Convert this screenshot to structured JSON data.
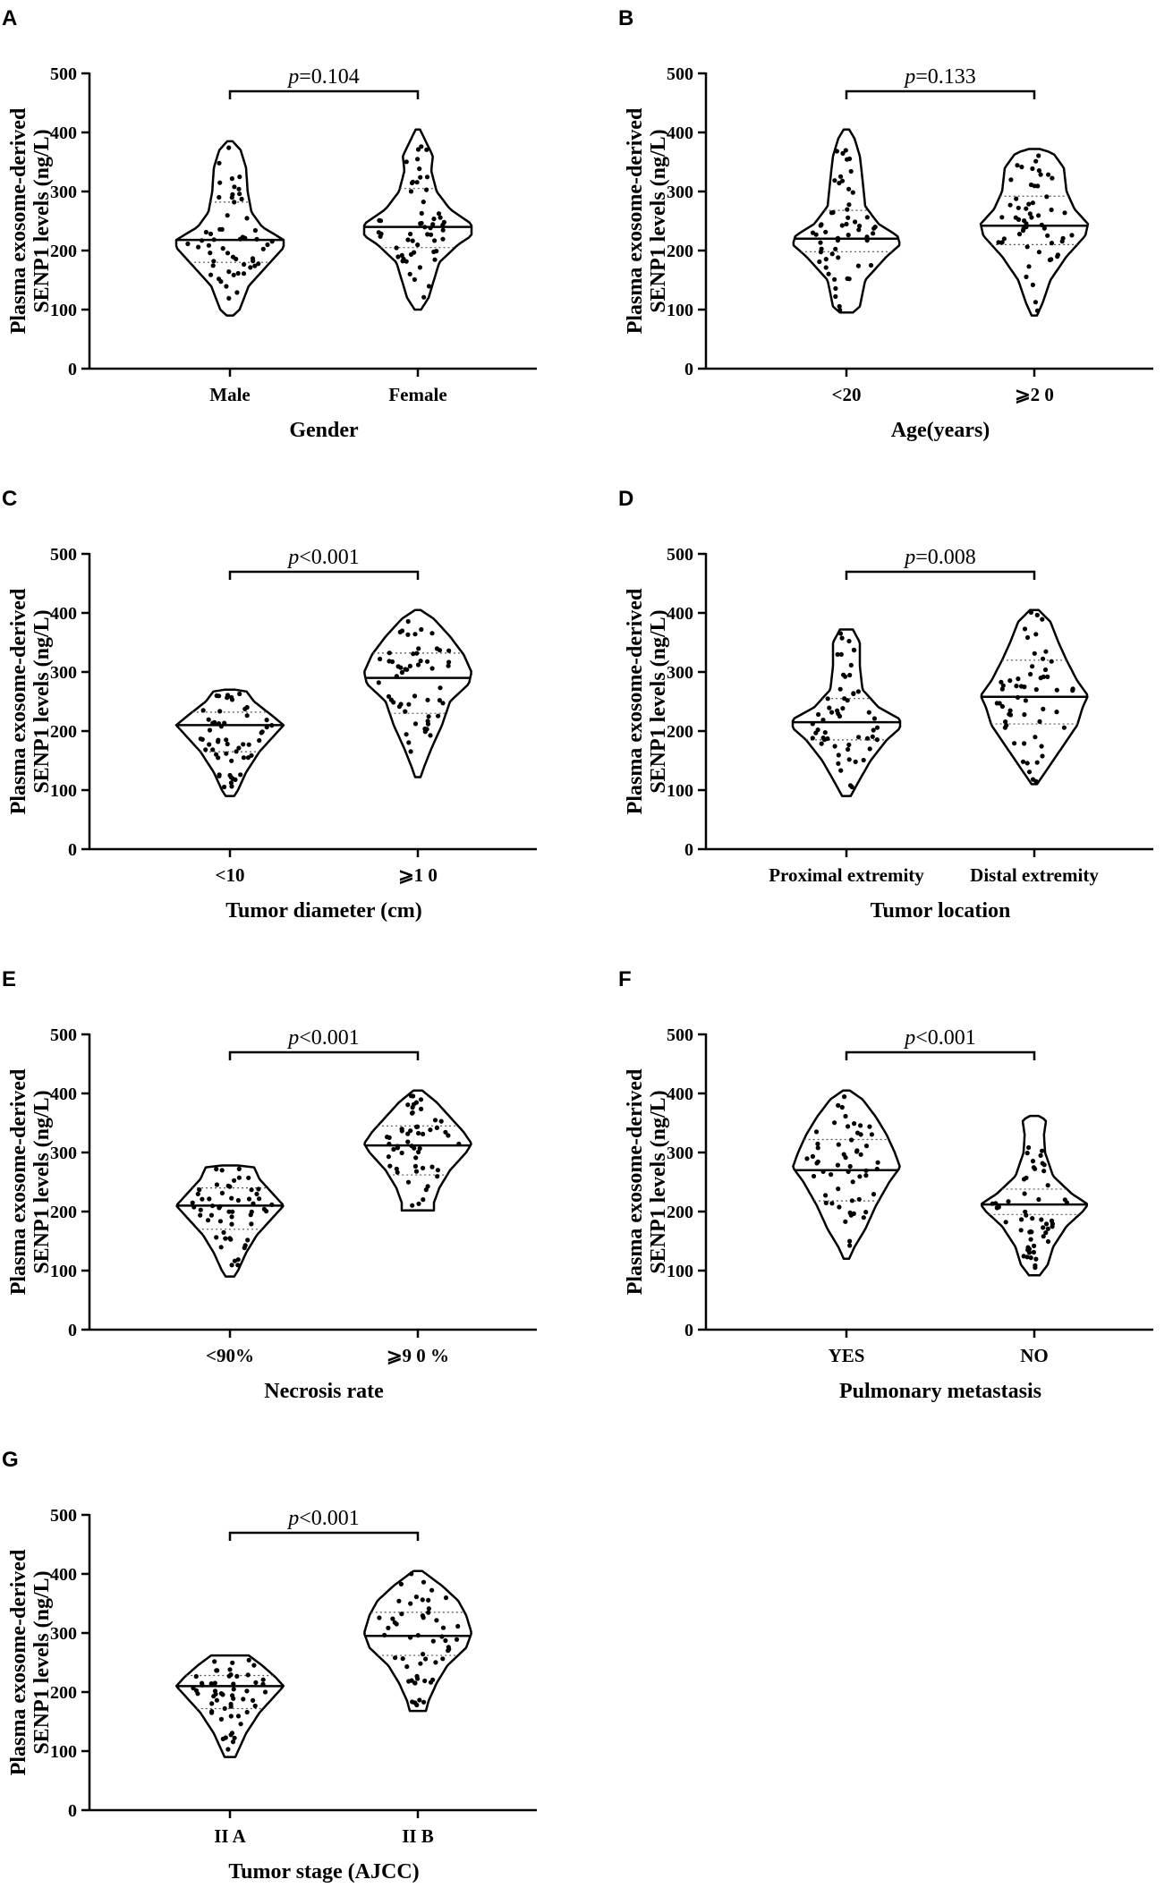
{
  "chart_data": [
    {
      "type": "violin",
      "panel_label": "A",
      "ylabel_line1": "Plasma exosome-derived",
      "ylabel_line2": "SENP1 levels (ng/L)",
      "xlabel": "Gender",
      "ylim": [
        0,
        500
      ],
      "yticks": [
        0,
        100,
        200,
        300,
        400,
        500
      ],
      "p_prefix": "p",
      "p_value": "=0.104",
      "groups": [
        {
          "name": "Male",
          "min": 90,
          "max": 385,
          "median": 218,
          "q1": 180,
          "q3": 282,
          "widths": [
            [
              90,
              0.06
            ],
            [
              100,
              0.18
            ],
            [
              140,
              0.35
            ],
            [
              180,
              0.75
            ],
            [
              205,
              1.0
            ],
            [
              218,
              1.0
            ],
            [
              240,
              0.6
            ],
            [
              265,
              0.4
            ],
            [
              300,
              0.33
            ],
            [
              340,
              0.3
            ],
            [
              370,
              0.2
            ],
            [
              385,
              0.05
            ]
          ]
        },
        {
          "name": "Female",
          "min": 100,
          "max": 405,
          "median": 240,
          "q1": 205,
          "q3": 305,
          "widths": [
            [
              100,
              0.06
            ],
            [
              120,
              0.2
            ],
            [
              150,
              0.3
            ],
            [
              180,
              0.4
            ],
            [
              210,
              0.75
            ],
            [
              225,
              1.0
            ],
            [
              245,
              1.0
            ],
            [
              270,
              0.6
            ],
            [
              300,
              0.35
            ],
            [
              335,
              0.25
            ],
            [
              360,
              0.28
            ],
            [
              390,
              0.12
            ],
            [
              405,
              0.04
            ]
          ]
        }
      ]
    },
    {
      "type": "violin",
      "panel_label": "B",
      "ylabel_line1": "Plasma exosome-derived",
      "ylabel_line2": "SENP1 levels (ng/L)",
      "xlabel": "Age(years)",
      "ylim": [
        0,
        500
      ],
      "yticks": [
        0,
        100,
        200,
        300,
        400,
        500
      ],
      "p_prefix": "p",
      "p_value": "=0.133",
      "groups": [
        {
          "name": "<20",
          "min": 95,
          "max": 405,
          "median": 220,
          "q1": 198,
          "q3": 268,
          "widths": [
            [
              95,
              0.12
            ],
            [
              105,
              0.25
            ],
            [
              150,
              0.35
            ],
            [
              190,
              0.75
            ],
            [
              210,
              1.0
            ],
            [
              225,
              0.95
            ],
            [
              245,
              0.6
            ],
            [
              275,
              0.35
            ],
            [
              320,
              0.3
            ],
            [
              360,
              0.25
            ],
            [
              390,
              0.15
            ],
            [
              405,
              0.05
            ]
          ]
        },
        {
          "name": "⩾2 0",
          "min": 90,
          "max": 372,
          "median": 242,
          "q1": 210,
          "q3": 292,
          "widths": [
            [
              90,
              0.05
            ],
            [
              110,
              0.15
            ],
            [
              150,
              0.3
            ],
            [
              190,
              0.6
            ],
            [
              225,
              0.95
            ],
            [
              245,
              1.0
            ],
            [
              270,
              0.75
            ],
            [
              300,
              0.6
            ],
            [
              340,
              0.55
            ],
            [
              365,
              0.35
            ],
            [
              372,
              0.1
            ]
          ]
        }
      ]
    },
    {
      "type": "violin",
      "panel_label": "C",
      "ylabel_line1": "Plasma exosome-derived",
      "ylabel_line2": "SENP1 levels (ng/L)",
      "xlabel": "Tumor diameter (cm)",
      "ylim": [
        0,
        500
      ],
      "yticks": [
        0,
        100,
        200,
        300,
        400,
        500
      ],
      "p_prefix": "p",
      "p_value": "<0.001",
      "groups": [
        {
          "name": "<10",
          "min": 90,
          "max": 270,
          "median": 210,
          "q1": 165,
          "q3": 232,
          "widths": [
            [
              90,
              0.08
            ],
            [
              100,
              0.15
            ],
            [
              130,
              0.3
            ],
            [
              165,
              0.55
            ],
            [
              195,
              0.85
            ],
            [
              210,
              1.0
            ],
            [
              225,
              0.8
            ],
            [
              250,
              0.45
            ],
            [
              268,
              0.3
            ],
            [
              270,
              0.1
            ]
          ]
        },
        {
          "name": "⩾1 0",
          "min": 122,
          "max": 405,
          "median": 290,
          "q1": 230,
          "q3": 332,
          "widths": [
            [
              122,
              0.05
            ],
            [
              140,
              0.12
            ],
            [
              170,
              0.25
            ],
            [
              210,
              0.45
            ],
            [
              250,
              0.6
            ],
            [
              280,
              0.95
            ],
            [
              300,
              1.0
            ],
            [
              330,
              0.85
            ],
            [
              360,
              0.6
            ],
            [
              390,
              0.3
            ],
            [
              405,
              0.05
            ]
          ]
        }
      ]
    },
    {
      "type": "violin",
      "panel_label": "D",
      "ylabel_line1": "Plasma exosome-derived",
      "ylabel_line2": "SENP1 levels (ng/L)",
      "xlabel": "Tumor location",
      "ylim": [
        0,
        500
      ],
      "yticks": [
        0,
        100,
        200,
        300,
        400,
        500
      ],
      "p_prefix": "p",
      "p_value": "=0.008",
      "groups": [
        {
          "name": "Proximal extremity",
          "min": 90,
          "max": 372,
          "median": 215,
          "q1": 185,
          "q3": 255,
          "widths": [
            [
              90,
              0.08
            ],
            [
              110,
              0.2
            ],
            [
              150,
              0.45
            ],
            [
              185,
              0.75
            ],
            [
              205,
              1.0
            ],
            [
              220,
              1.0
            ],
            [
              240,
              0.6
            ],
            [
              270,
              0.3
            ],
            [
              310,
              0.25
            ],
            [
              350,
              0.25
            ],
            [
              372,
              0.12
            ]
          ]
        },
        {
          "name": "Distal extremity",
          "min": 110,
          "max": 405,
          "median": 258,
          "q1": 212,
          "q3": 320,
          "widths": [
            [
              110,
              0.05
            ],
            [
              130,
              0.2
            ],
            [
              170,
              0.5
            ],
            [
              210,
              0.8
            ],
            [
              240,
              0.9
            ],
            [
              260,
              1.0
            ],
            [
              285,
              0.8
            ],
            [
              320,
              0.6
            ],
            [
              350,
              0.45
            ],
            [
              385,
              0.3
            ],
            [
              405,
              0.08
            ]
          ]
        }
      ]
    },
    {
      "type": "violin",
      "panel_label": "E",
      "ylabel_line1": "Plasma exosome-derived",
      "ylabel_line2": "SENP1 levels (ng/L)",
      "xlabel": "Necrosis rate",
      "ylim": [
        0,
        500
      ],
      "yticks": [
        0,
        100,
        200,
        300,
        400,
        500
      ],
      "p_prefix": "p",
      "p_value": "<0.001",
      "groups": [
        {
          "name": "<90%",
          "min": 90,
          "max": 278,
          "median": 210,
          "q1": 170,
          "q3": 240,
          "widths": [
            [
              90,
              0.08
            ],
            [
              100,
              0.15
            ],
            [
              130,
              0.3
            ],
            [
              160,
              0.5
            ],
            [
              195,
              0.85
            ],
            [
              210,
              1.0
            ],
            [
              230,
              0.8
            ],
            [
              255,
              0.55
            ],
            [
              275,
              0.45
            ],
            [
              278,
              0.15
            ]
          ]
        },
        {
          "name": "⩾9 0 %",
          "min": 202,
          "max": 405,
          "median": 312,
          "q1": 262,
          "q3": 345,
          "widths": [
            [
              202,
              0.3
            ],
            [
              215,
              0.3
            ],
            [
              240,
              0.4
            ],
            [
              270,
              0.6
            ],
            [
              300,
              0.9
            ],
            [
              315,
              1.0
            ],
            [
              335,
              0.85
            ],
            [
              360,
              0.6
            ],
            [
              385,
              0.35
            ],
            [
              405,
              0.08
            ]
          ]
        }
      ]
    },
    {
      "type": "violin",
      "panel_label": "F",
      "ylabel_line1": "Plasma exosome-derived",
      "ylabel_line2": "SENP1 levels (ng/L)",
      "xlabel": "Pulmonary metastasis",
      "ylim": [
        0,
        500
      ],
      "yticks": [
        0,
        100,
        200,
        300,
        400,
        500
      ],
      "p_prefix": "p",
      "p_value": "<0.001",
      "groups": [
        {
          "name": "YES",
          "min": 120,
          "max": 405,
          "median": 270,
          "q1": 218,
          "q3": 322,
          "widths": [
            [
              120,
              0.05
            ],
            [
              140,
              0.15
            ],
            [
              170,
              0.35
            ],
            [
              210,
              0.55
            ],
            [
              250,
              0.8
            ],
            [
              275,
              1.0
            ],
            [
              300,
              0.9
            ],
            [
              330,
              0.75
            ],
            [
              360,
              0.55
            ],
            [
              390,
              0.3
            ],
            [
              405,
              0.06
            ]
          ]
        },
        {
          "name": "NO",
          "min": 92,
          "max": 362,
          "median": 212,
          "q1": 195,
          "q3": 238,
          "widths": [
            [
              92,
              0.1
            ],
            [
              110,
              0.25
            ],
            [
              140,
              0.35
            ],
            [
              175,
              0.6
            ],
            [
              200,
              0.9
            ],
            [
              212,
              1.0
            ],
            [
              230,
              0.7
            ],
            [
              260,
              0.35
            ],
            [
              300,
              0.2
            ],
            [
              330,
              0.18
            ],
            [
              355,
              0.22
            ],
            [
              362,
              0.08
            ]
          ]
        }
      ]
    },
    {
      "type": "violin",
      "panel_label": "G",
      "ylabel_line1": "Plasma exosome-derived",
      "ylabel_line2": "SENP1 levels (ng/L)",
      "xlabel": "Tumor stage (AJCC)",
      "ylim": [
        0,
        500
      ],
      "yticks": [
        0,
        100,
        200,
        300,
        400,
        500
      ],
      "p_prefix": "p",
      "p_value": "<0.001",
      "groups": [
        {
          "name": "II A",
          "min": 90,
          "max": 262,
          "median": 210,
          "q1": 172,
          "q3": 228,
          "widths": [
            [
              90,
              0.1
            ],
            [
              100,
              0.15
            ],
            [
              130,
              0.3
            ],
            [
              165,
              0.55
            ],
            [
              195,
              0.85
            ],
            [
              210,
              1.0
            ],
            [
              225,
              0.85
            ],
            [
              245,
              0.6
            ],
            [
              262,
              0.35
            ]
          ]
        },
        {
          "name": "II B",
          "min": 168,
          "max": 405,
          "median": 295,
          "q1": 262,
          "q3": 335,
          "widths": [
            [
              168,
              0.15
            ],
            [
              185,
              0.2
            ],
            [
              215,
              0.35
            ],
            [
              245,
              0.55
            ],
            [
              275,
              0.9
            ],
            [
              300,
              1.0
            ],
            [
              330,
              0.9
            ],
            [
              355,
              0.75
            ],
            [
              380,
              0.45
            ],
            [
              405,
              0.08
            ]
          ]
        }
      ]
    }
  ]
}
